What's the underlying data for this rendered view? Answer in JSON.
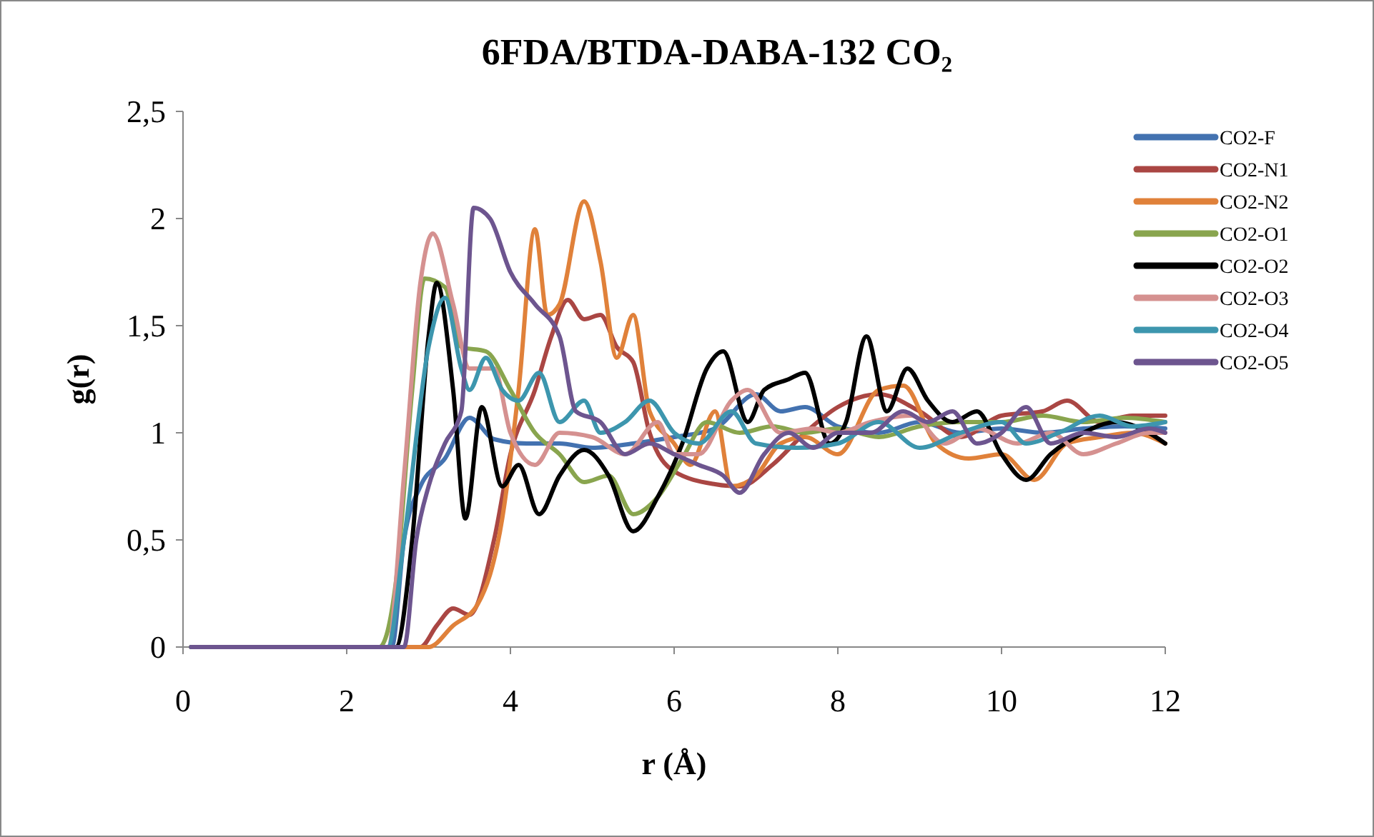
{
  "chart_data": {
    "type": "line",
    "title": "6FDA/BTDA-DABA-132 CO₂",
    "xlabel": "r (Å)",
    "ylabel": "g(r)",
    "xlim": [
      0,
      12
    ],
    "xticks": [
      0,
      2,
      4,
      6,
      8,
      10,
      12
    ],
    "ylim": [
      0,
      2.5
    ],
    "yticks": [
      0,
      {
        "value": 0.5,
        "label": "0,5"
      },
      1,
      {
        "value": 1.5,
        "label": "1,5"
      },
      2,
      {
        "value": 2.5,
        "label": "2,5"
      }
    ],
    "grid": false,
    "legend": "right",
    "marker": "none",
    "line_style": "solid",
    "series": [
      {
        "name": "CO2-F",
        "color": "#4372b0",
        "x": [
          0.1,
          2.55,
          2.7,
          2.9,
          3.2,
          3.5,
          3.8,
          4.2,
          4.6,
          5.0,
          5.5,
          6.0,
          6.5,
          7.0,
          7.3,
          7.6,
          8.0,
          8.5,
          9.0,
          9.5,
          10,
          10.5,
          11,
          11.5,
          12
        ],
        "values": [
          0,
          0,
          0.5,
          0.75,
          0.88,
          1.07,
          0.97,
          0.95,
          0.95,
          0.93,
          0.95,
          0.98,
          1.02,
          1.18,
          1.1,
          1.12,
          1.03,
          1.0,
          1.05,
          1.0,
          1.02,
          1.0,
          1.02,
          1.03,
          1.02
        ]
      },
      {
        "name": "CO2-N1",
        "color": "#aa4643",
        "x": [
          0.1,
          2.9,
          3.1,
          3.3,
          3.5,
          3.8,
          4.0,
          4.3,
          4.5,
          4.7,
          4.9,
          5.1,
          5.3,
          5.5,
          5.7,
          6.0,
          6.5,
          6.8,
          7.2,
          7.6,
          8.0,
          8.5,
          9.0,
          9.5,
          10,
          10.5,
          10.8,
          11.2,
          11.6,
          12
        ],
        "values": [
          0,
          0,
          0.1,
          0.18,
          0.15,
          0.5,
          0.9,
          1.2,
          1.45,
          1.62,
          1.53,
          1.55,
          1.4,
          1.33,
          1.0,
          0.82,
          0.76,
          0.75,
          0.85,
          1.0,
          1.12,
          1.18,
          1.1,
          0.98,
          1.08,
          1.1,
          1.15,
          1.05,
          1.08,
          1.08
        ]
      },
      {
        "name": "CO2-N2",
        "color": "#e0813a",
        "x": [
          0.1,
          3.0,
          3.3,
          3.6,
          3.9,
          4.1,
          4.3,
          4.45,
          4.6,
          4.9,
          5.1,
          5.3,
          5.5,
          5.7,
          6.0,
          6.2,
          6.5,
          6.7,
          7.0,
          7.3,
          7.6,
          8.0,
          8.5,
          8.8,
          9.2,
          9.6,
          10,
          10.4,
          10.8,
          11.2,
          11.6,
          12
        ],
        "values": [
          0,
          0,
          0.1,
          0.2,
          0.6,
          1.2,
          1.95,
          1.55,
          1.6,
          2.08,
          1.8,
          1.35,
          1.55,
          1.1,
          0.95,
          0.85,
          1.1,
          0.75,
          0.8,
          0.95,
          0.98,
          0.9,
          1.2,
          1.22,
          0.95,
          0.88,
          0.9,
          0.78,
          0.95,
          0.98,
          1.0,
          0.95
        ]
      },
      {
        "name": "CO2-O1",
        "color": "#89a54e",
        "x": [
          0.1,
          2.4,
          2.6,
          2.8,
          2.95,
          3.2,
          3.4,
          3.7,
          4.0,
          4.3,
          4.6,
          4.9,
          5.2,
          5.5,
          5.8,
          6.1,
          6.4,
          6.8,
          7.2,
          7.6,
          8.0,
          8.5,
          9.0,
          9.5,
          10,
          10.5,
          11,
          11.5,
          12
        ],
        "values": [
          0,
          0,
          0.3,
          1.2,
          1.72,
          1.68,
          1.4,
          1.38,
          1.2,
          1.0,
          0.9,
          0.77,
          0.8,
          0.62,
          0.7,
          0.88,
          1.05,
          1.0,
          1.03,
          1.0,
          1.02,
          0.98,
          1.03,
          1.05,
          1.05,
          1.08,
          1.05,
          1.07,
          1.05
        ]
      },
      {
        "name": "CO2-O2",
        "color": "#000000",
        "x": [
          0.1,
          2.6,
          2.8,
          3.0,
          3.1,
          3.3,
          3.45,
          3.65,
          3.9,
          4.1,
          4.35,
          4.6,
          4.9,
          5.2,
          5.5,
          5.8,
          6.1,
          6.4,
          6.6,
          6.9,
          7.1,
          7.4,
          7.6,
          7.9,
          8.1,
          8.35,
          8.6,
          8.85,
          9.1,
          9.4,
          9.7,
          10,
          10.3,
          10.6,
          11,
          11.4,
          11.8,
          12
        ],
        "values": [
          0,
          0,
          0.5,
          1.45,
          1.7,
          1.2,
          0.6,
          1.12,
          0.75,
          0.85,
          0.62,
          0.8,
          0.92,
          0.8,
          0.54,
          0.7,
          0.95,
          1.3,
          1.38,
          1.05,
          1.2,
          1.25,
          1.28,
          0.95,
          1.05,
          1.45,
          1.1,
          1.3,
          1.15,
          1.05,
          1.1,
          0.9,
          0.78,
          0.9,
          1.0,
          1.05,
          1.0,
          0.95
        ]
      },
      {
        "name": "CO2-O3",
        "color": "#d59190",
        "x": [
          0.1,
          2.5,
          2.7,
          2.9,
          3.05,
          3.3,
          3.5,
          3.8,
          4.0,
          4.3,
          4.6,
          5.0,
          5.4,
          5.8,
          6.0,
          6.3,
          6.7,
          6.9,
          7.3,
          7.7,
          8.0,
          8.4,
          8.9,
          9.3,
          9.7,
          10.2,
          10.6,
          11.0,
          11.4,
          11.8,
          12
        ],
        "values": [
          0,
          0,
          0.8,
          1.7,
          1.93,
          1.6,
          1.3,
          1.3,
          1.0,
          0.85,
          1.0,
          0.98,
          0.9,
          1.05,
          0.9,
          0.9,
          1.15,
          1.2,
          1.0,
          1.02,
          1.0,
          1.05,
          1.08,
          0.95,
          1.02,
          0.95,
          1.0,
          0.9,
          0.95,
          1.0,
          1.0
        ]
      },
      {
        "name": "CO2-O4",
        "color": "#3d96ae",
        "x": [
          0.1,
          2.5,
          2.7,
          3.0,
          3.2,
          3.4,
          3.5,
          3.7,
          3.9,
          4.1,
          4.35,
          4.6,
          4.9,
          5.1,
          5.4,
          5.7,
          6.0,
          6.3,
          6.7,
          7.0,
          7.5,
          8.0,
          8.5,
          9.0,
          9.5,
          10.0,
          10.3,
          10.7,
          11.2,
          11.6,
          12
        ],
        "values": [
          0,
          0,
          0.5,
          1.4,
          1.63,
          1.3,
          1.2,
          1.35,
          1.2,
          1.15,
          1.28,
          1.05,
          1.15,
          1.0,
          1.05,
          1.15,
          1.0,
          0.95,
          1.1,
          0.95,
          0.93,
          0.95,
          1.05,
          0.93,
          1.0,
          1.05,
          0.95,
          1.0,
          1.08,
          1.03,
          1.05
        ]
      },
      {
        "name": "CO2-O5",
        "color": "#6d558f",
        "x": [
          0.1,
          2.7,
          2.85,
          3.0,
          3.2,
          3.4,
          3.55,
          3.75,
          4.0,
          4.3,
          4.6,
          4.8,
          5.1,
          5.4,
          5.7,
          6.0,
          6.3,
          6.6,
          6.8,
          7.1,
          7.4,
          7.7,
          8.0,
          8.4,
          8.8,
          9.1,
          9.4,
          9.7,
          10.0,
          10.3,
          10.6,
          11.0,
          11.4,
          11.8,
          12
        ],
        "values": [
          0,
          0,
          0.5,
          0.75,
          0.95,
          1.1,
          2.05,
          2.0,
          1.75,
          1.6,
          1.45,
          1.1,
          1.05,
          0.9,
          0.95,
          0.9,
          0.85,
          0.8,
          0.72,
          0.9,
          1.0,
          0.93,
          1.0,
          1.0,
          1.1,
          1.05,
          1.1,
          0.95,
          1.0,
          1.12,
          0.95,
          1.0,
          0.98,
          1.02,
          1.0
        ]
      }
    ]
  }
}
